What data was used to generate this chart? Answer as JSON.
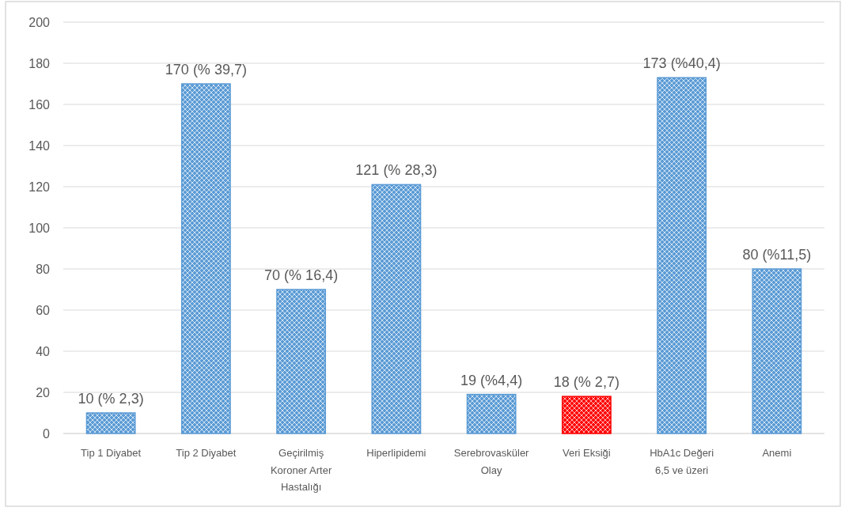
{
  "chart_data": {
    "type": "bar",
    "categories": [
      "Tip 1 Diyabet",
      "Tip 2 Diyabet",
      "Geçirilmiş Koroner Arter Hastalığı",
      "Hiperlipidemi",
      "Serebrovasküler Olay",
      "Veri Eksiği",
      "HbA1c Değeri 6,5 ve üzeri",
      "Anemi"
    ],
    "values": [
      10,
      170,
      70,
      121,
      19,
      18,
      173,
      80
    ],
    "colors": [
      "#5b9bd5",
      "#5b9bd5",
      "#5b9bd5",
      "#5b9bd5",
      "#5b9bd5",
      "#ff0000",
      "#5b9bd5",
      "#5b9bd5"
    ],
    "value_labels": [
      "10 (% 2,3)",
      "170 (% 39,7)",
      "70 (% 16,4)",
      "121 (% 28,3)",
      "19 (%4,4)",
      "18 (% 2,7)",
      "173 (%40,4)",
      "80 (%11,5)"
    ],
    "ylim": [
      0,
      200
    ],
    "yticks": [
      0,
      20,
      40,
      60,
      80,
      100,
      120,
      140,
      160,
      180,
      200
    ],
    "grid": "y"
  }
}
